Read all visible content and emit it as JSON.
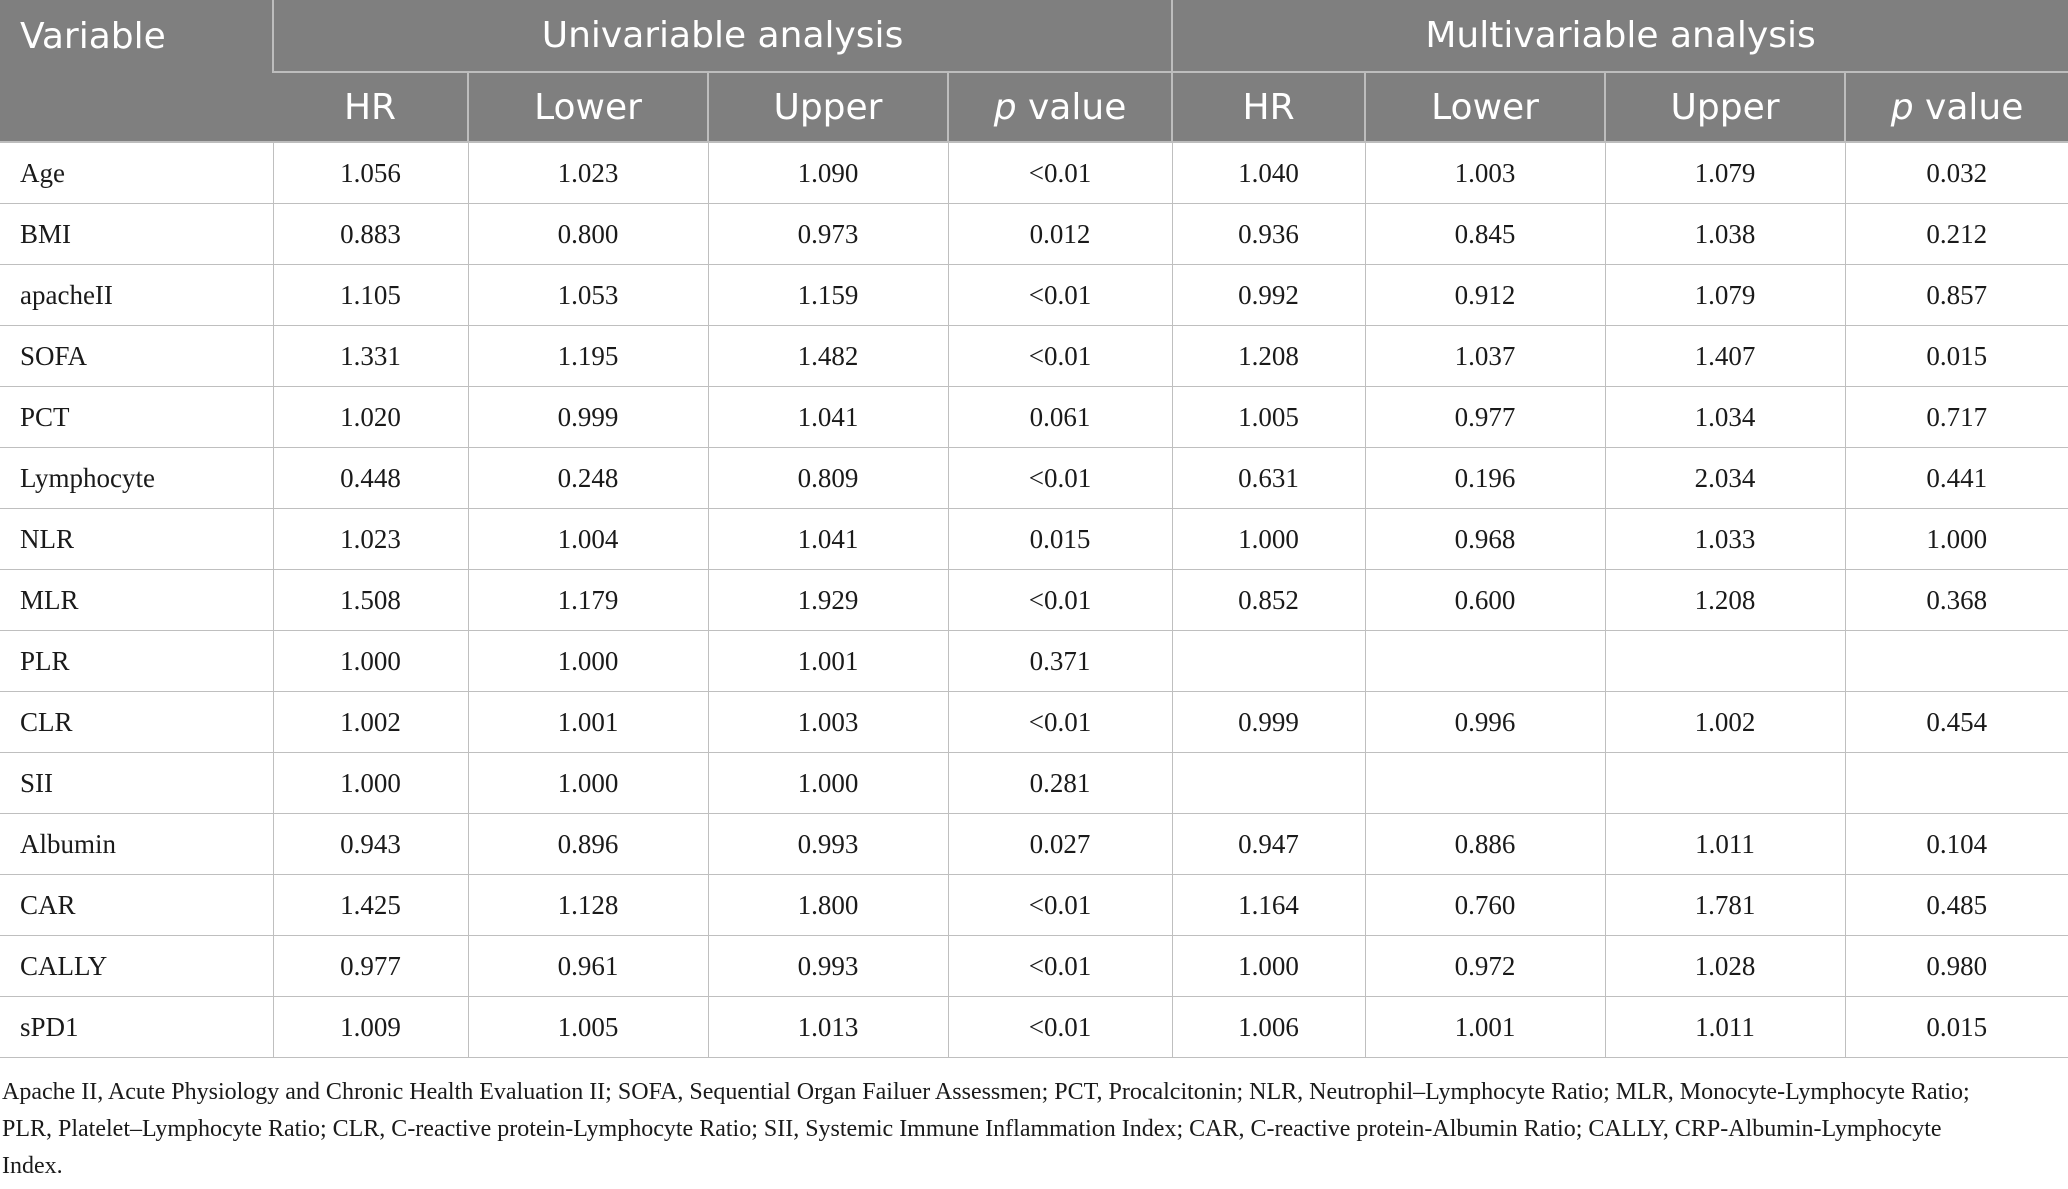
{
  "table": {
    "variable_header": "Variable",
    "group_headers": [
      "Univariable analysis",
      "Multivariable analysis"
    ],
    "sub_headers": [
      {
        "text": "HR",
        "italic_prefix": ""
      },
      {
        "text": "Lower",
        "italic_prefix": ""
      },
      {
        "text": "Upper",
        "italic_prefix": ""
      },
      {
        "text": " value",
        "italic_prefix": "p"
      },
      {
        "text": "HR",
        "italic_prefix": ""
      },
      {
        "text": "Lower",
        "italic_prefix": ""
      },
      {
        "text": "Upper",
        "italic_prefix": ""
      },
      {
        "text": " value",
        "italic_prefix": "p"
      }
    ],
    "rows": [
      {
        "variable": "Age",
        "uni": [
          "1.056",
          "1.023",
          "1.090",
          "<0.01"
        ],
        "multi": [
          "1.040",
          "1.003",
          "1.079",
          "0.032"
        ]
      },
      {
        "variable": "BMI",
        "uni": [
          "0.883",
          "0.800",
          "0.973",
          "0.012"
        ],
        "multi": [
          "0.936",
          "0.845",
          "1.038",
          "0.212"
        ]
      },
      {
        "variable": "apacheII",
        "uni": [
          "1.105",
          "1.053",
          "1.159",
          "<0.01"
        ],
        "multi": [
          "0.992",
          "0.912",
          "1.079",
          "0.857"
        ]
      },
      {
        "variable": "SOFA",
        "uni": [
          "1.331",
          "1.195",
          "1.482",
          "<0.01"
        ],
        "multi": [
          "1.208",
          "1.037",
          "1.407",
          "0.015"
        ]
      },
      {
        "variable": "PCT",
        "uni": [
          "1.020",
          "0.999",
          "1.041",
          "0.061"
        ],
        "multi": [
          "1.005",
          "0.977",
          "1.034",
          "0.717"
        ]
      },
      {
        "variable": "Lymphocyte",
        "uni": [
          "0.448",
          "0.248",
          "0.809",
          "<0.01"
        ],
        "multi": [
          "0.631",
          "0.196",
          "2.034",
          "0.441"
        ]
      },
      {
        "variable": "NLR",
        "uni": [
          "1.023",
          "1.004",
          "1.041",
          "0.015"
        ],
        "multi": [
          "1.000",
          "0.968",
          "1.033",
          "1.000"
        ]
      },
      {
        "variable": "MLR",
        "uni": [
          "1.508",
          "1.179",
          "1.929",
          "<0.01"
        ],
        "multi": [
          "0.852",
          "0.600",
          "1.208",
          "0.368"
        ]
      },
      {
        "variable": "PLR",
        "uni": [
          "1.000",
          "1.000",
          "1.001",
          "0.371"
        ],
        "multi": [
          "",
          "",
          "",
          ""
        ]
      },
      {
        "variable": "CLR",
        "uni": [
          "1.002",
          "1.001",
          "1.003",
          "<0.01"
        ],
        "multi": [
          "0.999",
          "0.996",
          "1.002",
          "0.454"
        ]
      },
      {
        "variable": "SII",
        "uni": [
          "1.000",
          "1.000",
          "1.000",
          "0.281"
        ],
        "multi": [
          "",
          "",
          "",
          ""
        ]
      },
      {
        "variable": "Albumin",
        "uni": [
          "0.943",
          "0.896",
          "0.993",
          "0.027"
        ],
        "multi": [
          "0.947",
          "0.886",
          "1.011",
          "0.104"
        ]
      },
      {
        "variable": "CAR",
        "uni": [
          "1.425",
          "1.128",
          "1.800",
          "<0.01"
        ],
        "multi": [
          "1.164",
          "0.760",
          "1.781",
          "0.485"
        ]
      },
      {
        "variable": "CALLY",
        "uni": [
          "0.977",
          "0.961",
          "0.993",
          "<0.01"
        ],
        "multi": [
          "1.000",
          "0.972",
          "1.028",
          "0.980"
        ]
      },
      {
        "variable": "sPD1",
        "uni": [
          "1.009",
          "1.005",
          "1.013",
          "<0.01"
        ],
        "multi": [
          "1.006",
          "1.001",
          "1.011",
          "0.015"
        ]
      }
    ]
  },
  "footnote": "Apache II, Acute Physiology and Chronic Health Evaluation II; SOFA, Sequential Organ Failuer Assessmen; PCT, Procalcitonin; NLR, Neutrophil–Lymphocyte Ratio; MLR, Monocyte-Lymphocyte Ratio; PLR, Platelet–Lymphocyte Ratio; CLR, C-reactive protein-Lymphocyte Ratio; SII, Systemic Immune Inflammation Index; CAR, C-reactive protein-Albumin Ratio; CALLY, CRP-Albumin-Lymphocyte Index.",
  "colors": {
    "header_bg": "#7f7f7f",
    "header_text": "#ffffff",
    "grid_line": "#bfbfbf"
  }
}
